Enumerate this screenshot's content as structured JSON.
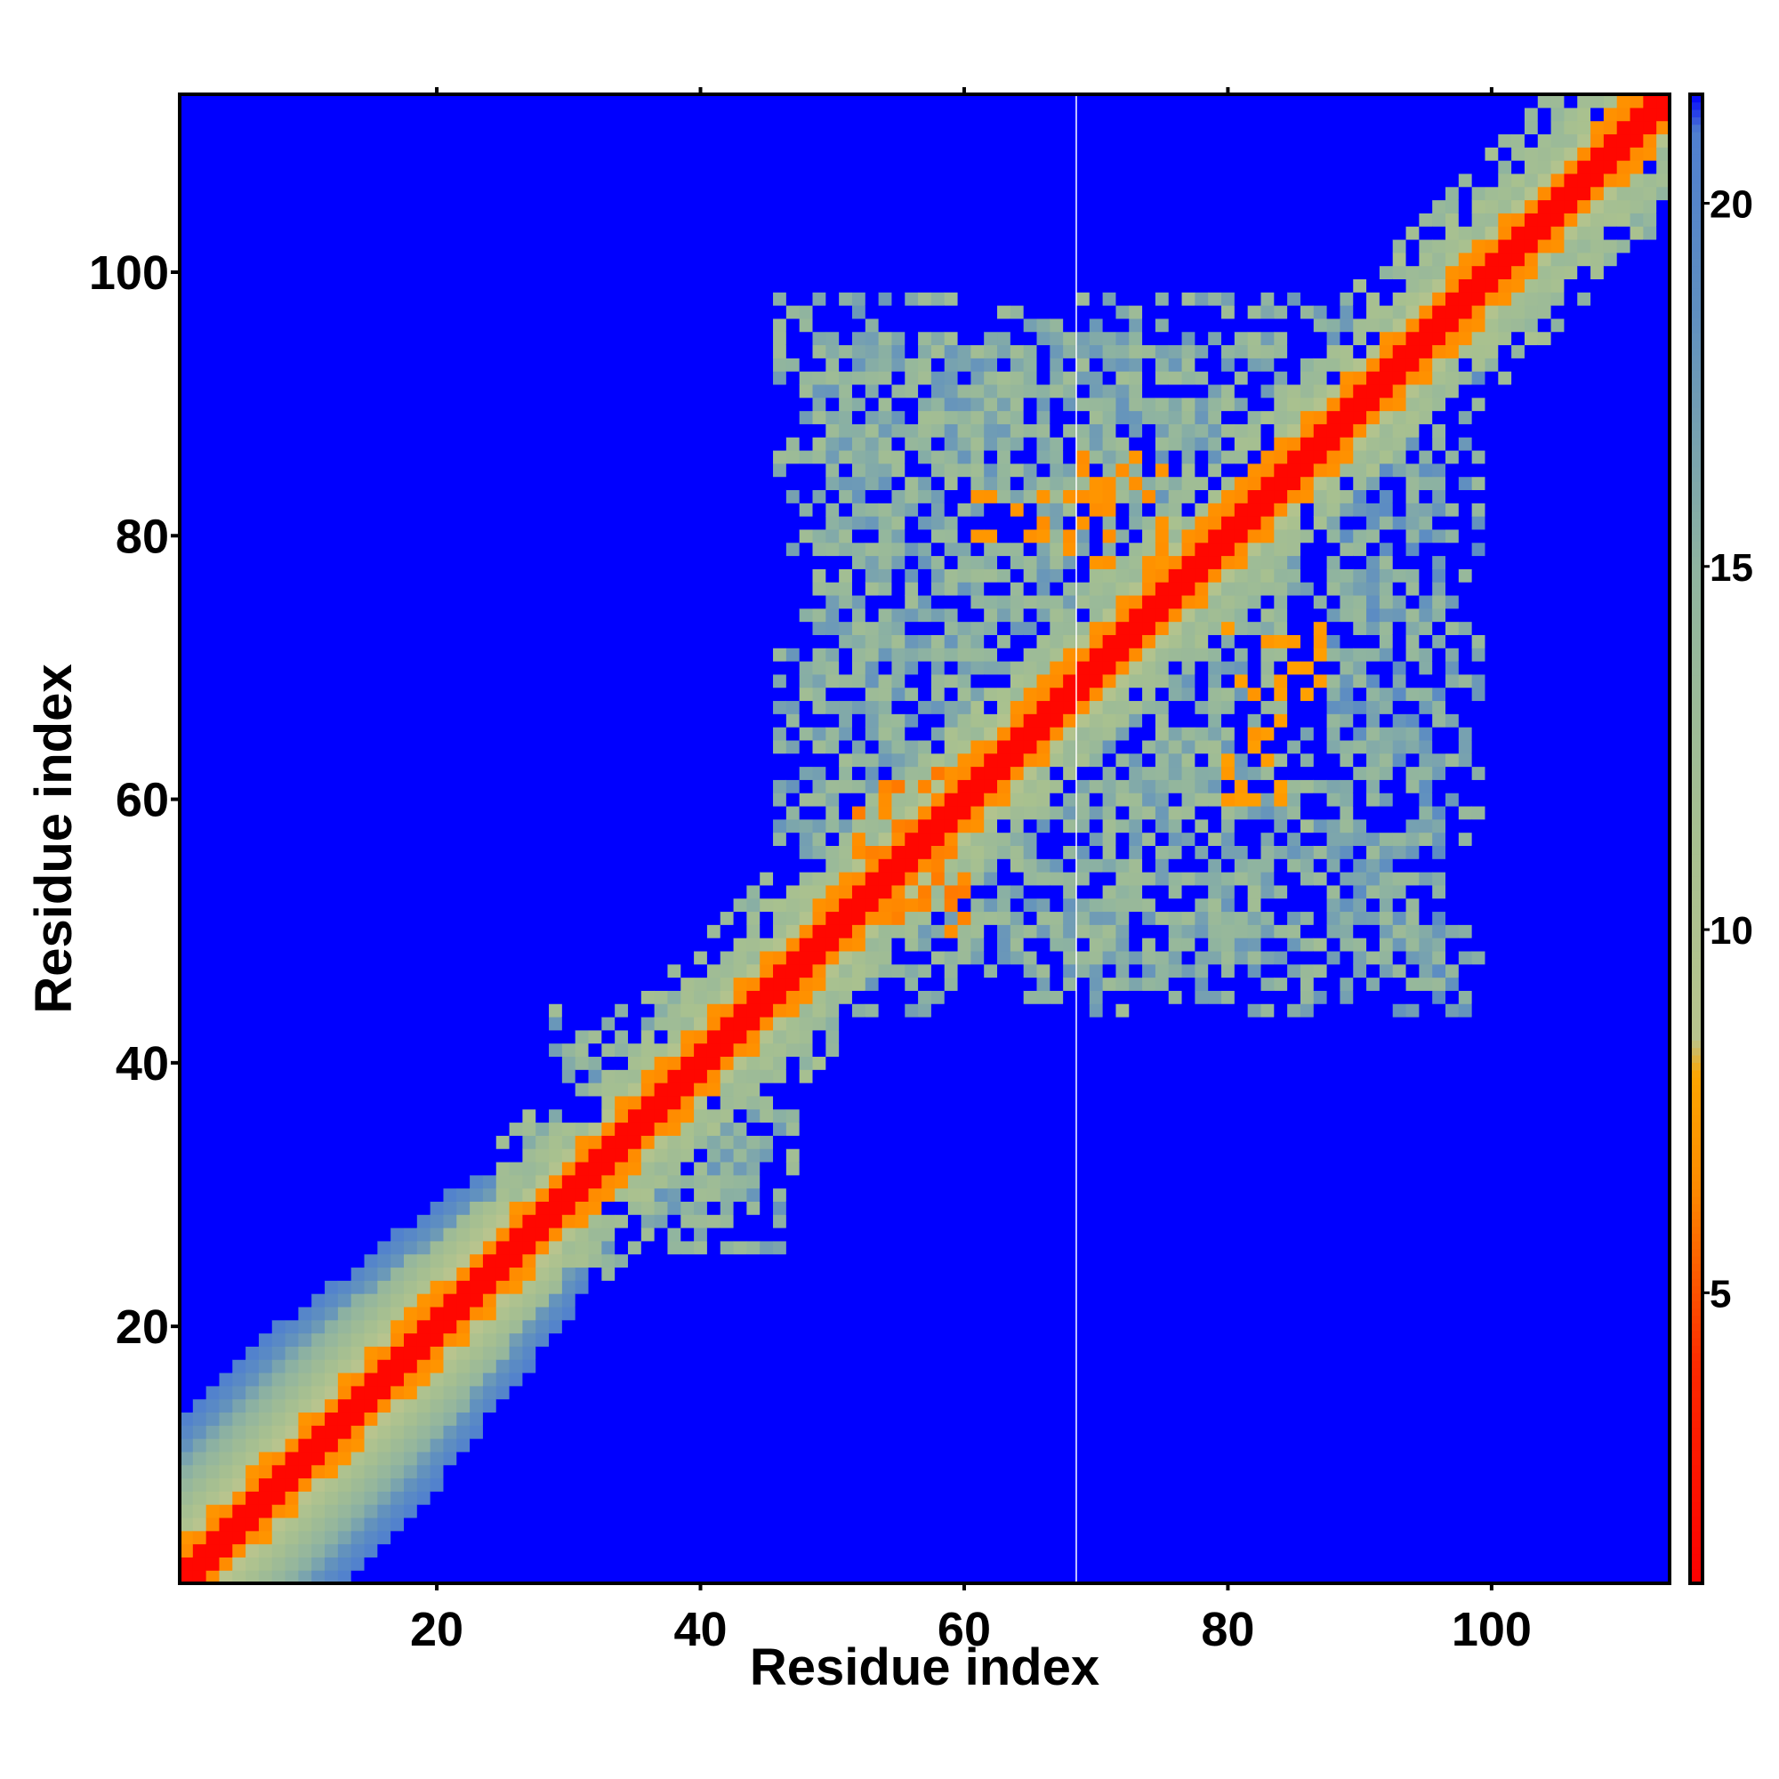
{
  "chart_data": {
    "type": "heatmap",
    "title": "",
    "xlabel": "Residue index",
    "ylabel": "Residue index",
    "xlim": [
      1,
      113
    ],
    "ylim": [
      1,
      113
    ],
    "x_ticks": [
      20,
      40,
      60,
      80,
      100
    ],
    "y_ticks": [
      20,
      40,
      60,
      80,
      100
    ],
    "colorbar": {
      "range": [
        1,
        21.5
      ],
      "ticks": [
        5,
        10,
        15,
        20
      ],
      "stops": [
        {
          "value": 1,
          "color": "#ff0000"
        },
        {
          "value": 4,
          "color": "#ff2a00"
        },
        {
          "value": 6.5,
          "color": "#ff8c00"
        },
        {
          "value": 8,
          "color": "#ffa500"
        },
        {
          "value": 8.5,
          "color": "#b8c48e"
        },
        {
          "value": 11,
          "color": "#a9c18f"
        },
        {
          "value": 15,
          "color": "#8fb4a0"
        },
        {
          "value": 18.5,
          "color": "#5f8fc0"
        },
        {
          "value": 21,
          "color": "#4f7fd0"
        },
        {
          "value": 21.5,
          "color": "#0000ff"
        }
      ]
    },
    "background_value": 21.5,
    "background_color": "#0000ff",
    "diagonal_band": {
      "core_value": 1.5,
      "near_value": 6.5,
      "mid_value": 10.5,
      "outer_value": 16
    },
    "contact_regions": [
      {
        "x": [
          46,
          87
        ],
        "y": [
          44,
          98
        ],
        "value": 12
      },
      {
        "x": [
          69,
          99
        ],
        "y": [
          44,
          97
        ],
        "value": 13
      },
      {
        "x": [
          29,
          47
        ],
        "y": [
          26,
          44
        ],
        "value": 12
      }
    ],
    "orange_patches": [
      {
        "x": [
          60,
          66
        ],
        "y": [
          80,
          83
        ],
        "value": 6.5
      },
      {
        "x": [
          68,
          75
        ],
        "y": [
          78,
          86
        ],
        "value": 6.5
      },
      {
        "x": [
          80,
          87
        ],
        "y": [
          68,
          73
        ],
        "value": 7
      },
      {
        "x": [
          80,
          84
        ],
        "y": [
          60,
          66
        ],
        "value": 7
      },
      {
        "x": [
          52,
          59
        ],
        "y": [
          50,
          62
        ],
        "value": 6
      },
      {
        "x": [
          54,
          60
        ],
        "y": [
          51,
          57
        ],
        "value": 6
      }
    ],
    "grid": false
  }
}
